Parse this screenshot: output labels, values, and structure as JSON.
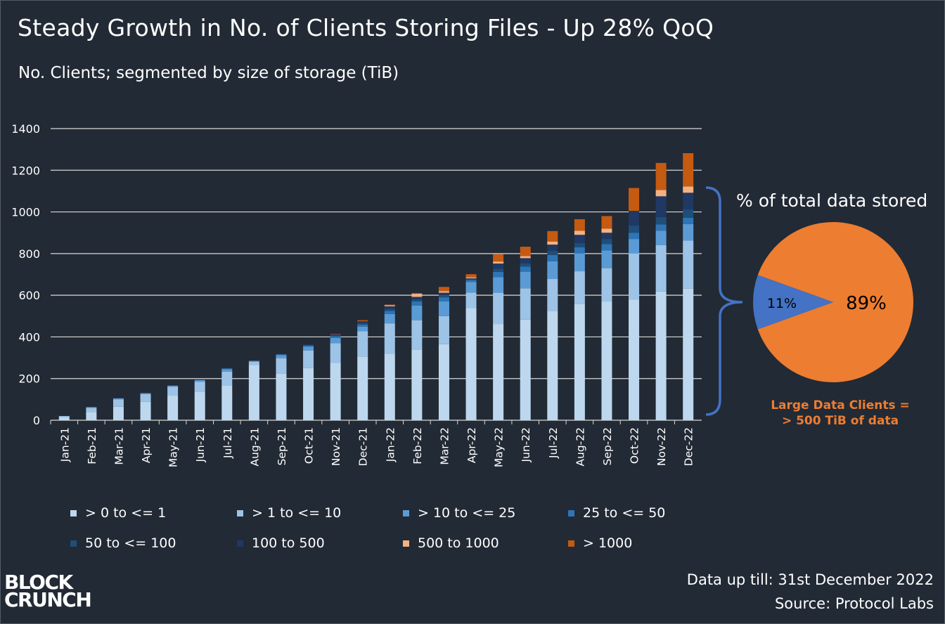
{
  "title": "Steady Growth in No. of Clients Storing Files - Up 28% QoQ",
  "subtitle": "No. Clients; segmented by size of storage (TiB)",
  "pie": {
    "title": "% of total data stored",
    "slices": [
      {
        "label": "89%",
        "value": 89,
        "color": "#ed7d31"
      },
      {
        "label": "11%",
        "value": 11,
        "color": "#4472c4"
      }
    ],
    "note_line1": "Large Data Clients =",
    "note_line2": "> 500 TiB of data"
  },
  "footer": {
    "date_note": "Data up till: 31st December 2022",
    "source": "Source: Protocol Labs"
  },
  "logo": {
    "line1": "BLOCK",
    "line2": "CRUNCH"
  },
  "chart_data": {
    "type": "bar",
    "stacked": true,
    "categories": [
      "Jan-21",
      "Feb-21",
      "Mar-21",
      "Apr-21",
      "May-21",
      "Jun-21",
      "Jul-21",
      "Aug-21",
      "Sep-21",
      "Oct-21",
      "Nov-21",
      "Dec-21",
      "Jan-22",
      "Feb-22",
      "Mar-22",
      "Apr-22",
      "May-22",
      "Jun-22",
      "Jul-22",
      "Aug-22",
      "Sep-22",
      "Oct-22",
      "Nov-22",
      "Dec-22"
    ],
    "ylim": [
      0,
      1400
    ],
    "yticks": [
      0,
      200,
      400,
      600,
      800,
      1000,
      1200,
      1400
    ],
    "grid": true,
    "legend_position": "bottom",
    "series": [
      {
        "name": "> 0 to <= 1",
        "color": "#bdd7ee",
        "values": [
          15,
          40,
          65,
          88,
          118,
          135,
          168,
          265,
          225,
          250,
          275,
          305,
          320,
          340,
          365,
          538,
          462,
          483,
          525,
          558,
          570,
          580,
          618,
          632
        ]
      },
      {
        "name": "> 1 to <= 10",
        "color": "#9dc3e6",
        "values": [
          5,
          20,
          35,
          37,
          43,
          50,
          65,
          15,
          73,
          85,
          95,
          122,
          145,
          140,
          135,
          75,
          150,
          150,
          153,
          157,
          160,
          220,
          222,
          230
        ]
      },
      {
        "name": "> 10 to <= 25",
        "color": "#5b9bd5",
        "values": [
          0,
          3,
          5,
          5,
          5,
          8,
          12,
          5,
          15,
          18,
          25,
          22,
          45,
          70,
          70,
          50,
          75,
          80,
          85,
          85,
          85,
          70,
          70,
          80
        ]
      },
      {
        "name": "25 to <= 50",
        "color": "#2e75b6",
        "values": [
          0,
          0,
          0,
          0,
          0,
          0,
          3,
          0,
          3,
          5,
          8,
          10,
          15,
          20,
          20,
          10,
          25,
          25,
          30,
          30,
          30,
          30,
          30,
          30
        ]
      },
      {
        "name": "50 to <= 100",
        "color": "#1f4e79",
        "values": [
          0,
          0,
          0,
          0,
          0,
          0,
          2,
          0,
          2,
          3,
          5,
          8,
          10,
          10,
          10,
          5,
          15,
          15,
          20,
          20,
          25,
          35,
          35,
          40
        ]
      },
      {
        "name": "100 to 500",
        "color": "#1f3864",
        "values": [
          0,
          0,
          0,
          0,
          0,
          0,
          0,
          0,
          0,
          3,
          5,
          8,
          12,
          12,
          12,
          3,
          25,
          25,
          30,
          40,
          30,
          70,
          100,
          80
        ]
      },
      {
        "name": "500 to 1000",
        "color": "#f4b183",
        "values": [
          0,
          0,
          0,
          0,
          0,
          0,
          0,
          0,
          0,
          0,
          0,
          0,
          5,
          15,
          8,
          5,
          10,
          10,
          15,
          20,
          20,
          0,
          30,
          30
        ]
      },
      {
        "name": "> 1000",
        "color": "#c55a11",
        "values": [
          0,
          0,
          0,
          0,
          0,
          0,
          0,
          0,
          0,
          0,
          2,
          5,
          3,
          3,
          20,
          15,
          35,
          45,
          50,
          55,
          60,
          110,
          130,
          160
        ]
      }
    ]
  }
}
